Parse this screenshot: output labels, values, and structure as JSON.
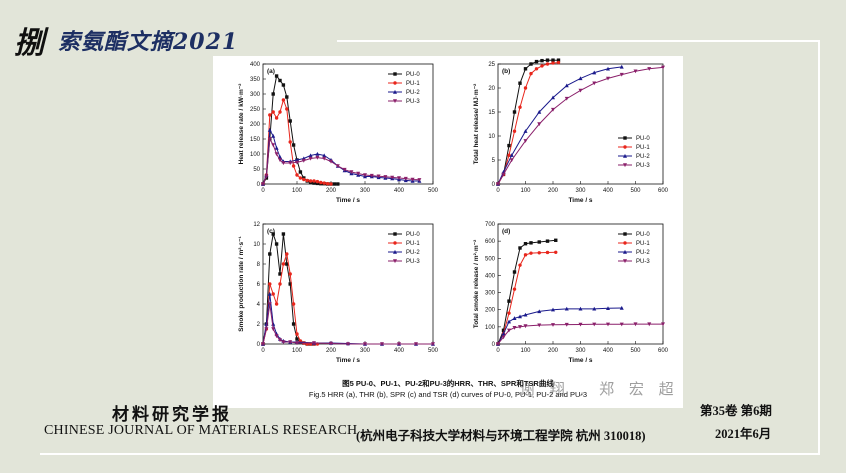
{
  "slide": {
    "title_char": "捌",
    "title_text": "索氨酯文摘2021",
    "caption_cn": "图5 PU-0、PU-1、PU-2和PU-3的HRR、THR、SPR和TSR曲线",
    "caption_en": "Fig.5 HRR (a), THR (b), SPR (c) and TSR (d) curves of PU-0, PU-1, PU-2 and PU-3",
    "journal_cn": "材料研究学报",
    "journal_en": "CHINESE JOURNAL OF MATERIALS RESEARCH",
    "affiliation": "(杭州电子科技大学材料与环境工程学院  杭州  310018)",
    "volume": "第35卷   第6期",
    "date": "2021年6月",
    "watermark": "谢  翔  ,  郑  宏  超"
  },
  "colors": {
    "PU-0": "#111111",
    "PU-1": "#e8261c",
    "PU-2": "#1a1a8c",
    "PU-3": "#8a1f6a"
  },
  "chart_data": [
    {
      "type": "line",
      "panel": "(a)",
      "title": "",
      "xlabel": "Time / s",
      "ylabel": "Heat release rate / kW·m⁻²",
      "xlim": [
        0,
        500
      ],
      "ylim": [
        0,
        400
      ],
      "xticks": [
        0,
        100,
        200,
        300,
        400,
        500
      ],
      "yticks": [
        0,
        50,
        100,
        150,
        200,
        250,
        300,
        350,
        400
      ],
      "legend": "top-right",
      "series": [
        {
          "name": "PU-0",
          "x": [
            0,
            10,
            20,
            30,
            40,
            50,
            60,
            70,
            80,
            90,
            100,
            110,
            120,
            130,
            140,
            150,
            160,
            170,
            180,
            190,
            200,
            210,
            220
          ],
          "y": [
            0,
            20,
            150,
            300,
            360,
            345,
            330,
            290,
            210,
            130,
            80,
            40,
            20,
            10,
            5,
            3,
            2,
            1,
            1,
            0,
            0,
            0,
            0
          ]
        },
        {
          "name": "PU-1",
          "x": [
            0,
            10,
            20,
            30,
            40,
            50,
            60,
            70,
            80,
            90,
            100,
            110,
            120,
            130,
            140,
            150,
            160,
            170,
            180,
            190,
            200
          ],
          "y": [
            0,
            30,
            230,
            240,
            220,
            240,
            280,
            250,
            140,
            60,
            30,
            20,
            15,
            12,
            10,
            10,
            8,
            5,
            3,
            1,
            0
          ]
        },
        {
          "name": "PU-2",
          "x": [
            0,
            10,
            20,
            30,
            40,
            50,
            60,
            80,
            100,
            120,
            140,
            160,
            180,
            200,
            220,
            240,
            260,
            280,
            300,
            320,
            340,
            360,
            380,
            400,
            420,
            440,
            460
          ],
          "y": [
            0,
            30,
            180,
            160,
            120,
            90,
            75,
            75,
            80,
            85,
            95,
            100,
            95,
            80,
            60,
            45,
            35,
            30,
            25,
            25,
            22,
            20,
            18,
            15,
            12,
            10,
            10
          ]
        },
        {
          "name": "PU-3",
          "x": [
            0,
            10,
            20,
            30,
            40,
            50,
            60,
            80,
            100,
            120,
            140,
            160,
            180,
            200,
            220,
            240,
            260,
            280,
            300,
            320,
            340,
            360,
            380,
            400,
            420,
            440,
            460
          ],
          "y": [
            0,
            25,
            150,
            130,
            100,
            80,
            70,
            70,
            72,
            78,
            85,
            88,
            85,
            75,
            60,
            48,
            40,
            35,
            30,
            28,
            26,
            24,
            22,
            20,
            18,
            15,
            14
          ]
        }
      ]
    },
    {
      "type": "line",
      "panel": "(b)",
      "title": "",
      "xlabel": "Time / s",
      "ylabel": "Total heat release/ MJ·m⁻²",
      "xlim": [
        0,
        600
      ],
      "ylim": [
        0,
        25
      ],
      "xticks": [
        0,
        100,
        200,
        300,
        400,
        500,
        600
      ],
      "yticks": [
        0,
        5,
        10,
        15,
        20,
        25
      ],
      "legend": "bottom-right",
      "series": [
        {
          "name": "PU-0",
          "x": [
            0,
            20,
            40,
            60,
            80,
            100,
            120,
            140,
            160,
            180,
            200,
            220
          ],
          "y": [
            0,
            2,
            8,
            15,
            21,
            24,
            25,
            25.5,
            25.7,
            25.8,
            25.8,
            25.8
          ]
        },
        {
          "name": "PU-1",
          "x": [
            0,
            20,
            40,
            60,
            80,
            100,
            120,
            140,
            160,
            180,
            200,
            220
          ],
          "y": [
            0,
            2,
            6,
            11,
            16,
            20,
            23,
            24,
            24.6,
            25,
            25.2,
            25.3
          ]
        },
        {
          "name": "PU-2",
          "x": [
            0,
            20,
            50,
            100,
            150,
            200,
            250,
            300,
            350,
            400,
            450
          ],
          "y": [
            0,
            2.5,
            6,
            11,
            15,
            18,
            20.5,
            22,
            23.2,
            24,
            24.4
          ]
        },
        {
          "name": "PU-3",
          "x": [
            0,
            20,
            50,
            100,
            150,
            200,
            250,
            300,
            350,
            400,
            450,
            500,
            550,
            600
          ],
          "y": [
            0,
            2,
            5,
            9,
            12.5,
            15.5,
            17.8,
            19.5,
            21,
            22,
            22.8,
            23.5,
            24,
            24.3
          ]
        }
      ]
    },
    {
      "type": "line",
      "panel": "(c)",
      "title": "",
      "xlabel": "Time / s",
      "ylabel": "Smoke production rate / m²·s⁻¹",
      "xlim": [
        0,
        500
      ],
      "ylim": [
        0,
        12
      ],
      "xticks": [
        0,
        100,
        200,
        300,
        400,
        500
      ],
      "yticks": [
        0,
        2,
        4,
        6,
        8,
        10,
        12
      ],
      "legend": "top-right",
      "series": [
        {
          "name": "PU-0",
          "x": [
            0,
            10,
            20,
            30,
            40,
            50,
            60,
            70,
            80,
            90,
            100,
            110,
            120,
            130,
            140,
            150
          ],
          "y": [
            0,
            2,
            9,
            11,
            10,
            7,
            11,
            8,
            6,
            2,
            0.5,
            0.2,
            0.1,
            0,
            0,
            0
          ]
        },
        {
          "name": "PU-1",
          "x": [
            0,
            10,
            20,
            30,
            40,
            50,
            60,
            70,
            80,
            90,
            100,
            110,
            120,
            130,
            140,
            150,
            160
          ],
          "y": [
            0,
            1.5,
            6,
            5,
            4,
            6,
            8,
            9,
            7,
            4,
            1,
            0.3,
            0.1,
            0,
            0,
            0,
            0
          ]
        },
        {
          "name": "PU-2",
          "x": [
            0,
            10,
            20,
            30,
            40,
            50,
            60,
            80,
            100,
            150,
            200,
            250,
            300,
            350,
            400,
            450,
            500
          ],
          "y": [
            0,
            2,
            5,
            2,
            1,
            0.5,
            0.3,
            0.2,
            0.2,
            0.1,
            0.1,
            0.05,
            0,
            0,
            0,
            0,
            0
          ]
        },
        {
          "name": "PU-3",
          "x": [
            0,
            10,
            20,
            30,
            40,
            50,
            60,
            80,
            100,
            150,
            200,
            250,
            300,
            350,
            400,
            450,
            500
          ],
          "y": [
            0,
            1.5,
            4,
            1.5,
            0.8,
            0.4,
            0.2,
            0.2,
            0.1,
            0.1,
            0.05,
            0,
            0,
            0,
            0,
            0,
            0
          ]
        }
      ]
    },
    {
      "type": "line",
      "panel": "(d)",
      "title": "",
      "xlabel": "Time / s",
      "ylabel": "Total smoke release / m²·m⁻²",
      "xlim": [
        0,
        600
      ],
      "ylim": [
        0,
        700
      ],
      "xticks": [
        0,
        100,
        200,
        300,
        400,
        500,
        600
      ],
      "yticks": [
        0,
        100,
        200,
        300,
        400,
        500,
        600,
        700
      ],
      "legend": "top-right",
      "series": [
        {
          "name": "PU-0",
          "x": [
            0,
            20,
            40,
            60,
            80,
            100,
            120,
            150,
            180,
            210
          ],
          "y": [
            0,
            80,
            250,
            420,
            560,
            585,
            590,
            595,
            600,
            605
          ]
        },
        {
          "name": "PU-1",
          "x": [
            0,
            20,
            40,
            60,
            80,
            100,
            120,
            150,
            180,
            210
          ],
          "y": [
            0,
            60,
            180,
            320,
            460,
            520,
            530,
            532,
            534,
            535
          ]
        },
        {
          "name": "PU-2",
          "x": [
            0,
            20,
            40,
            60,
            80,
            100,
            150,
            200,
            250,
            300,
            350,
            400,
            450
          ],
          "y": [
            0,
            60,
            130,
            150,
            160,
            170,
            190,
            200,
            205,
            205,
            205,
            208,
            210
          ]
        },
        {
          "name": "PU-3",
          "x": [
            0,
            20,
            40,
            60,
            80,
            100,
            150,
            200,
            250,
            300,
            350,
            400,
            450,
            500,
            550,
            600
          ],
          "y": [
            0,
            40,
            80,
            95,
            100,
            105,
            110,
            112,
            113,
            114,
            115,
            115,
            115,
            116,
            116,
            116
          ]
        }
      ]
    }
  ]
}
